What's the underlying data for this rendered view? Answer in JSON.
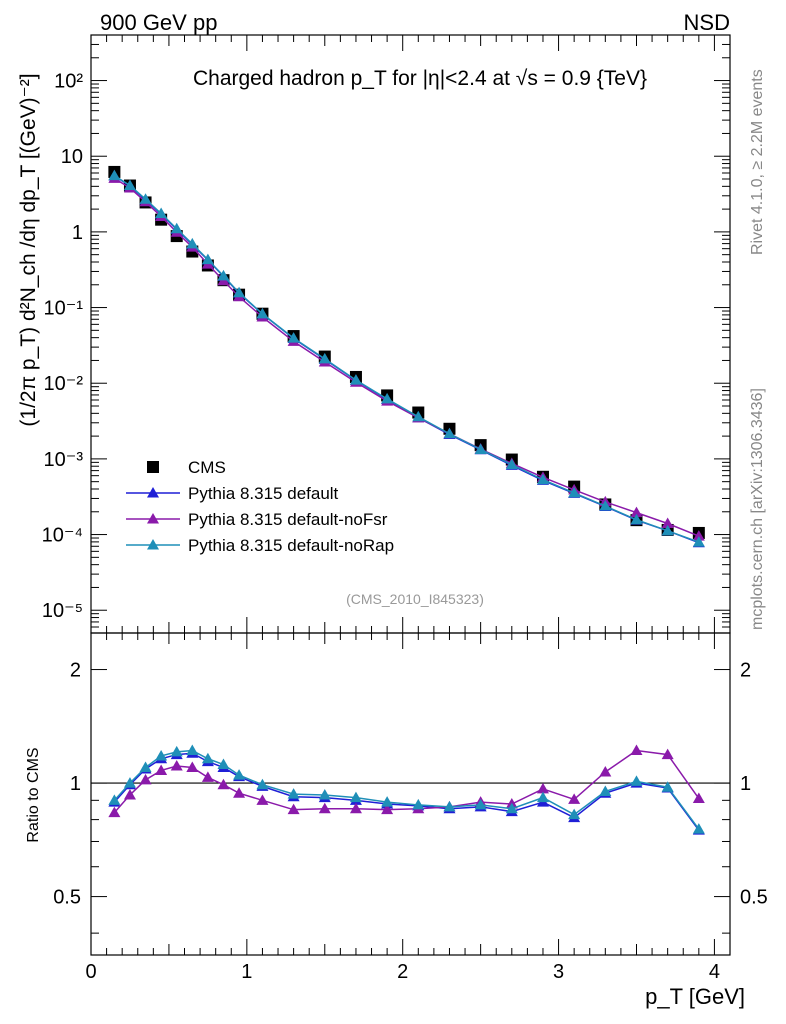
{
  "header": {
    "left_label": "900 GeV pp",
    "right_label": "NSD"
  },
  "side": {
    "rivet": "Rivet 4.1.0, ≥ 2.2M events",
    "source": "mcplots.cern.ch [arXiv:1306.3436]"
  },
  "analysis_id": "(CMS_2010_I845323)",
  "colors": {
    "data": "#000000",
    "default": "#1f1fd6",
    "noFsr": "#8a1aaa",
    "noRap": "#1f8fb8",
    "reference_line": "#000000"
  },
  "chart_data": [
    {
      "type": "line",
      "panel": "main",
      "title": "Charged hadron p_T for |η|<2.4 at √s = 0.9 {TeV}",
      "ylabel": "(1/2π p_T) d²N_ch /dη dp_T [(GeV)⁻²]",
      "xlabel": "p_T [GeV]",
      "yscale": "log",
      "xlim": [
        0,
        4.1
      ],
      "ylim": [
        5e-06,
        400
      ],
      "y_tick_labels": [
        "10⁻⁵",
        "10⁻⁴",
        "10⁻³",
        "10⁻²",
        "10⁻¹",
        "1",
        "10",
        "10²"
      ],
      "legend": {
        "position": "lower-left",
        "entries": [
          "CMS",
          "Pythia 8.315 default",
          "Pythia 8.315 default-noFsr",
          "Pythia 8.315 default-noRap"
        ]
      },
      "x": [
        0.15,
        0.25,
        0.35,
        0.45,
        0.55,
        0.65,
        0.75,
        0.85,
        0.95,
        1.1,
        1.3,
        1.5,
        1.7,
        1.9,
        2.1,
        2.3,
        2.5,
        2.7,
        2.9,
        3.1,
        3.3,
        3.5,
        3.7,
        3.9
      ],
      "series": [
        {
          "name": "CMS",
          "marker": "square",
          "values": [
            6.2,
            4.1,
            2.45,
            1.45,
            0.88,
            0.55,
            0.36,
            0.23,
            0.148,
            0.083,
            0.042,
            0.0225,
            0.0121,
            0.0069,
            0.0041,
            0.0025,
            0.00152,
            0.00098,
            0.00058,
            0.00043,
            0.00025,
            0.000155,
            0.000115,
            0.000105
          ]
        },
        {
          "name": "Pythia 8.315 default",
          "marker": "triangle",
          "values": [
            5.5,
            4.05,
            2.65,
            1.72,
            1.08,
            0.68,
            0.425,
            0.258,
            0.155,
            0.082,
            0.039,
            0.0207,
            0.0109,
            0.0061,
            0.0035,
            0.0021,
            0.00132,
            0.00082,
            0.00052,
            0.00035,
            0.000235,
            0.000155,
            0.000112,
            7.8e-05
          ]
        },
        {
          "name": "Pythia 8.315 default-noFsr",
          "marker": "triangle",
          "values": [
            5.1,
            3.8,
            2.5,
            1.6,
            0.99,
            0.63,
            0.375,
            0.226,
            0.139,
            0.075,
            0.0357,
            0.0191,
            0.0103,
            0.0058,
            0.00349,
            0.00215,
            0.00135,
            0.00087,
            0.00057,
            0.00039,
            0.00027,
            0.000195,
            0.00014,
            9.55e-05
          ]
        },
        {
          "name": "Pythia 8.315 default-noRap",
          "marker": "triangle",
          "values": [
            5.55,
            4.1,
            2.7,
            1.75,
            1.1,
            0.695,
            0.43,
            0.262,
            0.157,
            0.0825,
            0.0395,
            0.021,
            0.011,
            0.0062,
            0.0036,
            0.00215,
            0.00133,
            0.00084,
            0.00053,
            0.000355,
            0.000238,
            0.000157,
            0.000112,
            7.95e-05
          ]
        }
      ]
    },
    {
      "type": "line",
      "panel": "ratio",
      "ylabel": "Ratio to CMS",
      "xlabel": "p_T [GeV]",
      "yscale": "log",
      "xlim": [
        0,
        4.1
      ],
      "ylim": [
        0.35,
        2.5
      ],
      "y_tick_labels": [
        "0.5",
        "1",
        "2"
      ],
      "x_tick_labels": [
        "0",
        "1",
        "2",
        "3",
        "4"
      ],
      "reference": 1,
      "x": [
        0.15,
        0.25,
        0.35,
        0.45,
        0.55,
        0.65,
        0.75,
        0.85,
        0.95,
        1.1,
        1.3,
        1.5,
        1.7,
        1.9,
        2.1,
        2.3,
        2.5,
        2.7,
        2.9,
        3.1,
        3.3,
        3.5,
        3.7,
        3.9
      ],
      "series": [
        {
          "name": "Pythia 8.315 default",
          "values": [
            0.89,
            0.99,
            1.09,
            1.16,
            1.19,
            1.2,
            1.14,
            1.1,
            1.04,
            0.98,
            0.92,
            0.915,
            0.9,
            0.88,
            0.87,
            0.855,
            0.865,
            0.84,
            0.89,
            0.81,
            0.94,
            1.0,
            0.97,
            0.75
          ]
        },
        {
          "name": "Pythia 8.315 default-noFsr",
          "values": [
            0.835,
            0.93,
            1.02,
            1.08,
            1.11,
            1.1,
            1.035,
            0.99,
            0.94,
            0.9,
            0.85,
            0.855,
            0.855,
            0.85,
            0.855,
            0.865,
            0.89,
            0.88,
            0.965,
            0.905,
            1.07,
            1.22,
            1.19,
            0.91
          ]
        },
        {
          "name": "Pythia 8.315 default-noRap",
          "values": [
            0.9,
            1.0,
            1.1,
            1.18,
            1.21,
            1.22,
            1.16,
            1.12,
            1.05,
            0.99,
            0.935,
            0.93,
            0.915,
            0.89,
            0.875,
            0.865,
            0.875,
            0.855,
            0.915,
            0.825,
            0.95,
            1.01,
            0.975,
            0.755
          ]
        }
      ]
    }
  ]
}
